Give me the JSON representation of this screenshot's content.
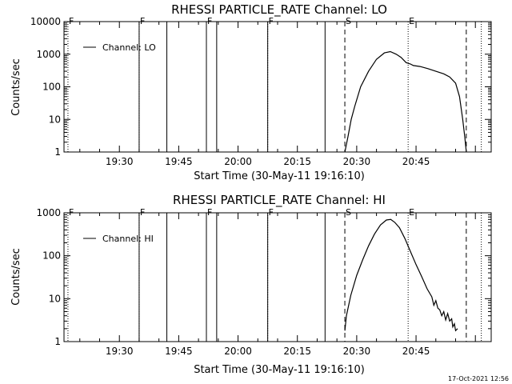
{
  "footer": {
    "timestamp": "17-Oct-2021 12:56"
  },
  "chart_data": [
    {
      "type": "line",
      "title": "RHESSI PARTICLE_RATE Channel: LO",
      "xlabel": "Start Time (30-May-11 19:16:10)",
      "ylabel": "Counts/sec",
      "y_scale": "log",
      "ylim": [
        1,
        10000
      ],
      "y_ticks": [
        1,
        10,
        100,
        1000,
        10000
      ],
      "y_tick_labels": [
        "1",
        "10",
        "100",
        "1000",
        "10000"
      ],
      "xlim_minutes": [
        1156,
        1264
      ],
      "x_ticks": [
        1170,
        1185,
        1200,
        1215,
        1230,
        1245
      ],
      "x_tick_labels": [
        "19:30",
        "19:45",
        "20:00",
        "20:15",
        "20:30",
        "20:45"
      ],
      "legend": {
        "label": "Channel: LO",
        "position": "top-left"
      },
      "events": [
        {
          "t": 1157,
          "label": "F",
          "style": "dotted"
        },
        {
          "t": 1175,
          "label": "",
          "style": "dotted"
        },
        {
          "t": 1175,
          "label": "F",
          "style": "solid"
        },
        {
          "t": 1182,
          "label": "",
          "style": "solid"
        },
        {
          "t": 1192,
          "label": "",
          "style": "dotted"
        },
        {
          "t": 1192,
          "label": "F",
          "style": "solid"
        },
        {
          "t": 1194.6,
          "label": "",
          "style": "solid"
        },
        {
          "t": 1207.5,
          "label": "",
          "style": "dotted"
        },
        {
          "t": 1207.5,
          "label": "F",
          "style": "solid"
        },
        {
          "t": 1222,
          "label": "",
          "style": "solid"
        },
        {
          "t": 1227,
          "label": "S",
          "style": "dashed"
        },
        {
          "t": 1243,
          "label": "E",
          "style": "dotted"
        },
        {
          "t": 1257.7,
          "label": "",
          "style": "dashed"
        },
        {
          "t": 1261.5,
          "label": "",
          "style": "dotted"
        }
      ],
      "series": [
        {
          "name": "Channel: LO",
          "x": [
            1227,
            1227.8,
            1228.6,
            1229.5,
            1231,
            1233,
            1235,
            1237,
            1238.5,
            1240,
            1241.2,
            1242.5,
            1243.6,
            1244.3,
            1246,
            1248,
            1250,
            1252,
            1253.5,
            1255,
            1256,
            1256.8,
            1257.3,
            1257.7
          ],
          "y": [
            1,
            3,
            10,
            25,
            100,
            300,
            700,
            1100,
            1200,
            1000,
            800,
            550,
            500,
            450,
            420,
            360,
            300,
            250,
            200,
            130,
            50,
            10,
            3,
            1
          ]
        }
      ]
    },
    {
      "type": "line",
      "title": "RHESSI PARTICLE_RATE Channel: HI",
      "xlabel": "Start Time (30-May-11 19:16:10)",
      "ylabel": "Counts/sec",
      "y_scale": "log",
      "ylim": [
        1,
        1000
      ],
      "y_ticks": [
        1,
        10,
        100,
        1000
      ],
      "y_tick_labels": [
        "1",
        "10",
        "100",
        "1000"
      ],
      "xlim_minutes": [
        1156,
        1264
      ],
      "x_ticks": [
        1170,
        1185,
        1200,
        1215,
        1230,
        1245
      ],
      "x_tick_labels": [
        "19:30",
        "19:45",
        "20:00",
        "20:15",
        "20:30",
        "20:45"
      ],
      "legend": {
        "label": "Channel: HI",
        "position": "top-left"
      },
      "events": [
        {
          "t": 1157,
          "label": "F",
          "style": "dotted"
        },
        {
          "t": 1175,
          "label": "",
          "style": "dotted"
        },
        {
          "t": 1175,
          "label": "F",
          "style": "solid"
        },
        {
          "t": 1182,
          "label": "",
          "style": "solid"
        },
        {
          "t": 1192,
          "label": "",
          "style": "dotted"
        },
        {
          "t": 1192,
          "label": "F",
          "style": "solid"
        },
        {
          "t": 1194.6,
          "label": "",
          "style": "solid"
        },
        {
          "t": 1207.5,
          "label": "",
          "style": "dotted"
        },
        {
          "t": 1207.5,
          "label": "F",
          "style": "solid"
        },
        {
          "t": 1222,
          "label": "",
          "style": "solid"
        },
        {
          "t": 1227,
          "label": "S",
          "style": "dashed"
        },
        {
          "t": 1243,
          "label": "E",
          "style": "dotted"
        },
        {
          "t": 1257.7,
          "label": "",
          "style": "dashed"
        },
        {
          "t": 1261.5,
          "label": "",
          "style": "dotted"
        }
      ],
      "series": [
        {
          "name": "Channel: HI",
          "x": [
            1227,
            1227.4,
            1228.5,
            1230,
            1231.5,
            1233,
            1234.5,
            1236,
            1237.5,
            1238.6,
            1239.6,
            1240.8,
            1242.2,
            1243.6,
            1245,
            1246.4,
            1247.8,
            1249,
            1249.5,
            1250,
            1250.5,
            1251,
            1251.5,
            1252,
            1252.5,
            1253,
            1253.5,
            1254,
            1254.3,
            1254.7,
            1255,
            1255.5
          ],
          "y": [
            1.8,
            4,
            12,
            35,
            80,
            170,
            320,
            520,
            680,
            700,
            600,
            450,
            250,
            125,
            62,
            33,
            17,
            11,
            7,
            9,
            6,
            5.5,
            4,
            5,
            3.2,
            4.5,
            3,
            3.4,
            2.2,
            2.6,
            1.8,
            2
          ]
        }
      ]
    }
  ]
}
